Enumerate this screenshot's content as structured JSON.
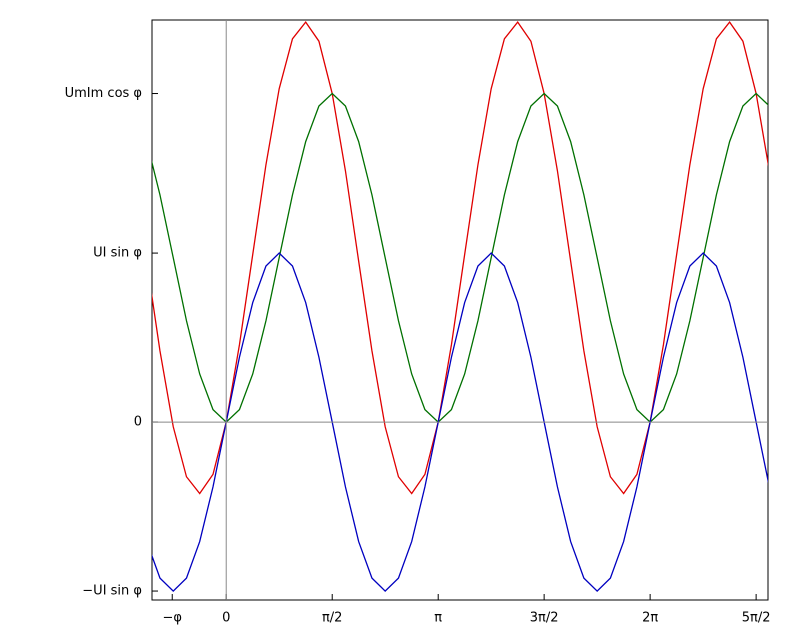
{
  "chart_data": {
    "type": "line",
    "x": [
      -1.178,
      -0.982,
      -0.785,
      -0.589,
      -0.393,
      -0.196,
      0,
      0.196,
      0.393,
      0.589,
      0.785,
      0.982,
      1.178,
      1.374,
      1.571,
      1.767,
      1.963,
      2.16,
      2.356,
      2.553,
      2.749,
      2.945,
      3.142,
      3.338,
      3.534,
      3.731,
      3.927,
      4.123,
      4.32,
      4.516,
      4.712,
      4.909,
      5.105,
      5.301,
      5.498,
      5.694,
      5.89,
      6.087,
      6.283,
      6.48,
      6.676,
      6.872,
      7.069,
      7.265,
      7.461,
      7.658,
      7.854,
      8.05
    ],
    "series": [
      {
        "color": "#e00000",
        "values": [
          0.683,
          0.302,
          -0.02,
          -0.232,
          -0.303,
          -0.222,
          0,
          0.328,
          0.711,
          1.092,
          1.414,
          1.626,
          1.697,
          1.616,
          1.394,
          1.066,
          0.683,
          0.302,
          -0.02,
          -0.232,
          -0.303,
          -0.222,
          0,
          0.328,
          0.711,
          1.092,
          1.414,
          1.626,
          1.697,
          1.616,
          1.394,
          1.066,
          0.683,
          0.302,
          -0.02,
          -0.232,
          -0.303,
          -0.222,
          0,
          0.328,
          0.711,
          1.092,
          1.414,
          1.626,
          1.697,
          1.616,
          1.394,
          1.066
        ]
      },
      {
        "color": "#007000",
        "values": [
          1.19,
          0.964,
          0.697,
          0.43,
          0.204,
          0.053,
          0,
          0.053,
          0.204,
          0.43,
          0.697,
          0.964,
          1.19,
          1.341,
          1.394,
          1.341,
          1.19,
          0.964,
          0.697,
          0.43,
          0.204,
          0.053,
          0,
          0.053,
          0.204,
          0.43,
          0.697,
          0.964,
          1.19,
          1.341,
          1.394,
          1.341,
          1.19,
          0.964,
          0.697,
          0.43,
          0.204,
          0.053,
          0,
          0.053,
          0.204,
          0.43,
          0.697,
          0.964,
          1.19,
          1.341,
          1.394,
          1.341
        ]
      },
      {
        "color": "#0000c0",
        "values": [
          -0.507,
          -0.662,
          -0.717,
          -0.662,
          -0.507,
          -0.275,
          0,
          0.275,
          0.507,
          0.662,
          0.717,
          0.662,
          0.507,
          0.275,
          0,
          -0.275,
          -0.507,
          -0.662,
          -0.717,
          -0.662,
          -0.507,
          -0.275,
          0,
          0.275,
          0.507,
          0.662,
          0.717,
          0.662,
          0.507,
          0.275,
          0,
          -0.275,
          -0.507,
          -0.662,
          -0.717,
          -0.662,
          -0.507,
          -0.275,
          0,
          0.275,
          0.507,
          0.662,
          0.717,
          0.662,
          0.507,
          0.275,
          0,
          -0.275
        ]
      }
    ],
    "xlim": [
      -1.1,
      8.03
    ],
    "ylim": [
      -0.755,
      1.706
    ],
    "xticks": [
      {
        "value": -0.8,
        "label": "−φ"
      },
      0,
      {
        "value": 1.571,
        "label": "π/2"
      },
      {
        "value": 3.142,
        "label": "π"
      },
      {
        "value": 4.712,
        "label": "3π/2"
      },
      {
        "value": 6.283,
        "label": "2π"
      },
      {
        "value": 7.854,
        "label": "5π/2"
      }
    ],
    "yticks": [
      {
        "value": -0.717,
        "label": "−UI sin φ"
      },
      0,
      {
        "value": 0.717,
        "label": "UI sin φ"
      },
      {
        "value": 1.394,
        "label": "UmIm cos φ"
      }
    ],
    "grid": false
  }
}
